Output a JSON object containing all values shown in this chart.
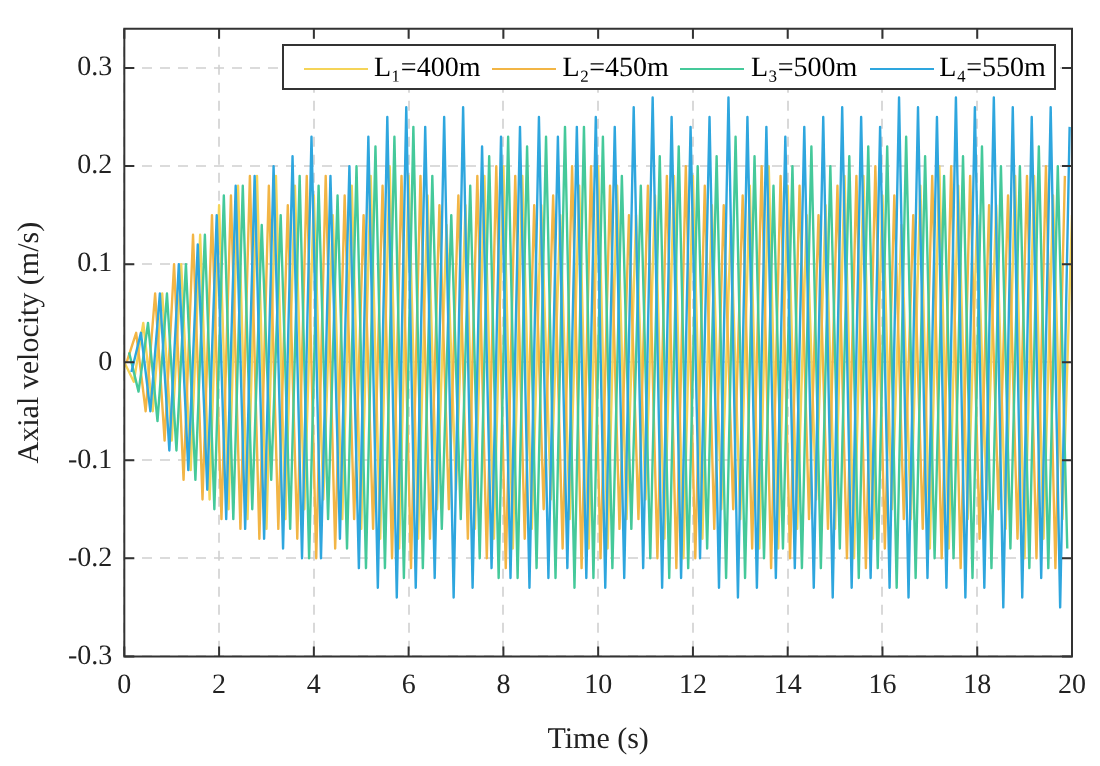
{
  "chart_data": {
    "type": "line",
    "xlabel": "Time (s)",
    "ylabel": "Axial velocity (m/s)",
    "x": [
      0,
      0.2,
      0.4,
      0.6,
      0.8,
      1,
      1.2,
      1.4,
      1.6,
      1.8,
      2,
      2.2,
      2.4,
      2.6,
      2.8,
      3,
      3.2,
      3.4,
      3.6,
      3.8,
      4,
      4.2,
      4.4,
      4.6,
      4.8,
      5,
      5.2,
      5.4,
      5.6,
      5.8,
      6,
      6.2,
      6.4,
      6.6,
      6.8,
      7,
      7.2,
      7.4,
      7.6,
      7.8,
      8,
      8.2,
      8.4,
      8.6,
      8.8,
      9,
      9.2,
      9.4,
      9.6,
      9.8,
      10,
      10.2,
      10.4,
      10.6,
      10.8,
      11,
      11.2,
      11.4,
      11.6,
      11.8,
      12,
      12.2,
      12.4,
      12.6,
      12.8,
      13,
      13.2,
      13.4,
      13.6,
      13.8,
      14,
      14.2,
      14.4,
      14.6,
      14.8,
      15,
      15.2,
      15.4,
      15.6,
      15.8,
      16,
      16.2,
      16.4,
      16.6,
      16.8,
      17,
      17.2,
      17.4,
      17.6,
      17.8,
      18,
      18.2,
      18.4,
      18.6,
      18.8,
      19,
      19.2,
      19.4,
      19.6,
      19.8,
      20
    ],
    "series": [
      {
        "name": "L₁=400m",
        "color": "#f5d458",
        "values": [
          0,
          -0.02,
          0.04,
          -0.05,
          0.07,
          -0.08,
          0.1,
          -0.11,
          0.13,
          -0.14,
          0.16,
          -0.15,
          0.18,
          -0.16,
          0.19,
          -0.17,
          0.19,
          -0.16,
          0.18,
          -0.15,
          0.17,
          -0.14,
          0.15,
          -0.16,
          0.18,
          -0.17,
          0.19,
          -0.18,
          0.2,
          -0.19,
          0.19,
          -0.18,
          0.17,
          -0.15,
          0.14,
          -0.13,
          0.16,
          -0.17,
          0.19,
          -0.18,
          0.2,
          -0.19,
          0.19,
          -0.17,
          0.16,
          -0.14,
          0.15,
          -0.16,
          0.18,
          -0.19,
          0.2,
          -0.19,
          0.18,
          -0.16,
          0.15,
          -0.14,
          0.17,
          -0.18,
          0.19,
          -0.2,
          0.19,
          -0.18,
          0.16,
          -0.15,
          0.14,
          -0.16,
          0.18,
          -0.19,
          0.2,
          -0.19,
          0.18,
          -0.17,
          0.15,
          -0.14,
          0.16,
          -0.17,
          0.19,
          -0.2,
          0.19,
          -0.18,
          0.17,
          -0.15,
          0.14,
          -0.16,
          0.18,
          -0.19,
          0.2,
          -0.19,
          0.18,
          -0.16,
          0.15,
          -0.14,
          0.16,
          -0.17,
          0.19,
          -0.2,
          0.19,
          -0.18,
          0.17,
          -0.16,
          0.15
        ]
      },
      {
        "name": "L₂=450m",
        "color": "#f2b545",
        "x": [
          0.05,
          0.25,
          0.45,
          0.65,
          0.85,
          1.05,
          1.25,
          1.45,
          1.65,
          1.85,
          2.05,
          2.25,
          2.45,
          2.65,
          2.85,
          3.05,
          3.25,
          3.45,
          3.65,
          3.85,
          4.05,
          4.25,
          4.45,
          4.65,
          4.85,
          5.05,
          5.25,
          5.45,
          5.65,
          5.85,
          6.05,
          6.25,
          6.45,
          6.65,
          6.85,
          7.05,
          7.25,
          7.45,
          7.65,
          7.85,
          8.05,
          8.25,
          8.45,
          8.65,
          8.85,
          9.05,
          9.25,
          9.45,
          9.65,
          9.85,
          10.05,
          10.25,
          10.45,
          10.65,
          10.85,
          11.05,
          11.25,
          11.45,
          11.65,
          11.85,
          12.05,
          12.25,
          12.45,
          12.65,
          12.85,
          13.05,
          13.25,
          13.45,
          13.65,
          13.85,
          14.05,
          14.25,
          14.45,
          14.65,
          14.85,
          15.05,
          15.25,
          15.45,
          15.65,
          15.85,
          16.05,
          16.25,
          16.45,
          16.65,
          16.85,
          17.05,
          17.25,
          17.45,
          17.65,
          17.85,
          18.05,
          18.25,
          18.45,
          18.65,
          18.85,
          19.05,
          19.25,
          19.45,
          19.65,
          19.85
        ],
        "values": [
          0,
          0.03,
          -0.05,
          0.07,
          -0.08,
          0.1,
          -0.12,
          0.13,
          -0.14,
          0.15,
          -0.16,
          0.17,
          -0.17,
          0.19,
          -0.18,
          0.18,
          -0.17,
          0.16,
          -0.18,
          0.19,
          -0.2,
          0.19,
          -0.19,
          0.17,
          -0.16,
          0.15,
          -0.17,
          0.18,
          -0.2,
          0.19,
          -0.21,
          0.19,
          -0.18,
          0.16,
          -0.15,
          0.17,
          -0.18,
          0.19,
          -0.2,
          0.2,
          -0.21,
          0.19,
          -0.18,
          0.16,
          -0.15,
          0.17,
          -0.19,
          0.2,
          -0.21,
          0.2,
          -0.2,
          0.18,
          -0.17,
          0.15,
          -0.16,
          0.18,
          -0.2,
          0.19,
          -0.21,
          0.2,
          -0.2,
          0.18,
          -0.17,
          0.16,
          -0.15,
          0.17,
          -0.19,
          0.2,
          -0.21,
          0.19,
          -0.2,
          0.18,
          -0.16,
          0.15,
          -0.17,
          0.18,
          -0.2,
          0.19,
          -0.21,
          0.2,
          -0.19,
          0.17,
          -0.16,
          0.15,
          -0.17,
          0.19,
          -0.2,
          0.2,
          -0.21,
          0.19,
          -0.18,
          0.16,
          -0.15,
          0.17,
          -0.18,
          0.19,
          -0.2,
          0.2,
          -0.21,
          0.19
        ]
      },
      {
        "name": "L₃=500m",
        "color": "#45c99a",
        "x": [
          0.1,
          0.3,
          0.5,
          0.7,
          0.9,
          1.1,
          1.3,
          1.5,
          1.7,
          1.9,
          2.1,
          2.3,
          2.5,
          2.7,
          2.9,
          3.1,
          3.3,
          3.5,
          3.7,
          3.9,
          4.1,
          4.3,
          4.5,
          4.7,
          4.9,
          5.1,
          5.3,
          5.5,
          5.7,
          5.9,
          6.1,
          6.3,
          6.5,
          6.7,
          6.9,
          7.1,
          7.3,
          7.5,
          7.7,
          7.9,
          8.1,
          8.3,
          8.5,
          8.7,
          8.9,
          9.1,
          9.3,
          9.5,
          9.7,
          9.9,
          10.1,
          10.3,
          10.5,
          10.7,
          10.9,
          11.1,
          11.3,
          11.5,
          11.7,
          11.9,
          12.1,
          12.3,
          12.5,
          12.7,
          12.9,
          13.1,
          13.3,
          13.5,
          13.7,
          13.9,
          14.1,
          14.3,
          14.5,
          14.7,
          14.9,
          15.1,
          15.3,
          15.5,
          15.7,
          15.9,
          16.1,
          16.3,
          16.5,
          16.7,
          16.9,
          17.1,
          17.3,
          17.5,
          17.7,
          17.9,
          18.1,
          18.3,
          18.5,
          18.7,
          18.9,
          19.1,
          19.3,
          19.5,
          19.7,
          19.9
        ],
        "values": [
          0.01,
          -0.03,
          0.04,
          -0.06,
          0.07,
          -0.09,
          0.1,
          -0.12,
          0.13,
          -0.15,
          0.17,
          -0.16,
          0.18,
          -0.15,
          0.14,
          -0.12,
          0.15,
          -0.17,
          0.19,
          -0.2,
          0.18,
          -0.16,
          0.17,
          -0.19,
          0.2,
          -0.21,
          0.22,
          -0.21,
          0.23,
          -0.22,
          0.24,
          -0.21,
          0.19,
          -0.17,
          0.15,
          -0.16,
          0.18,
          -0.2,
          0.21,
          -0.22,
          0.23,
          -0.22,
          0.22,
          -0.21,
          0.23,
          -0.22,
          0.24,
          -0.23,
          0.24,
          -0.22,
          0.23,
          -0.21,
          0.19,
          -0.17,
          0.18,
          -0.2,
          0.21,
          -0.22,
          0.22,
          -0.21,
          0.2,
          -0.19,
          0.21,
          -0.22,
          0.23,
          -0.22,
          0.21,
          -0.2,
          0.18,
          -0.19,
          0.2,
          -0.21,
          0.22,
          -0.21,
          0.2,
          -0.19,
          0.21,
          -0.22,
          0.22,
          -0.21,
          0.22,
          -0.23,
          0.23,
          -0.22,
          0.21,
          -0.2,
          0.19,
          -0.2,
          0.21,
          -0.22,
          0.22,
          -0.21,
          0.2,
          -0.19,
          0.2,
          -0.21,
          0.22,
          -0.21,
          0.2,
          -0.19
        ]
      },
      {
        "name": "L₄=550m",
        "color": "#2ea6de",
        "x": [
          0.15,
          0.35,
          0.55,
          0.75,
          0.95,
          1.15,
          1.35,
          1.55,
          1.75,
          1.95,
          2.15,
          2.35,
          2.55,
          2.75,
          2.95,
          3.15,
          3.35,
          3.55,
          3.75,
          3.95,
          4.15,
          4.35,
          4.55,
          4.75,
          4.95,
          5.15,
          5.35,
          5.55,
          5.75,
          5.95,
          6.15,
          6.35,
          6.55,
          6.75,
          6.95,
          7.15,
          7.35,
          7.55,
          7.75,
          7.95,
          8.15,
          8.35,
          8.55,
          8.75,
          8.95,
          9.15,
          9.35,
          9.55,
          9.75,
          9.95,
          10.15,
          10.35,
          10.55,
          10.75,
          10.95,
          11.15,
          11.35,
          11.55,
          11.75,
          11.95,
          12.15,
          12.35,
          12.55,
          12.75,
          12.95,
          13.15,
          13.35,
          13.55,
          13.75,
          13.95,
          14.15,
          14.35,
          14.55,
          14.75,
          14.95,
          15.15,
          15.35,
          15.55,
          15.75,
          15.95,
          16.15,
          16.35,
          16.55,
          16.75,
          16.95,
          17.15,
          17.35,
          17.55,
          17.75,
          17.95,
          18.15,
          18.35,
          18.55,
          18.75,
          18.95,
          19.15,
          19.35,
          19.55,
          19.75,
          19.95
        ],
        "values": [
          -0.01,
          0.03,
          -0.05,
          0.07,
          -0.09,
          0.1,
          -0.11,
          0.12,
          -0.13,
          0.15,
          -0.16,
          0.18,
          -0.17,
          0.19,
          -0.18,
          0.2,
          -0.19,
          0.21,
          -0.2,
          0.23,
          -0.2,
          0.19,
          -0.18,
          0.2,
          -0.21,
          0.23,
          -0.23,
          0.25,
          -0.24,
          0.26,
          -0.23,
          0.24,
          -0.22,
          0.25,
          -0.24,
          0.26,
          -0.23,
          0.22,
          -0.21,
          0.23,
          -0.22,
          0.24,
          -0.23,
          0.25,
          -0.22,
          0.23,
          -0.21,
          0.24,
          -0.22,
          0.25,
          -0.23,
          0.24,
          -0.22,
          0.26,
          -0.21,
          0.27,
          -0.23,
          0.25,
          -0.22,
          0.24,
          -0.2,
          0.25,
          -0.23,
          0.27,
          -0.24,
          0.25,
          -0.23,
          0.24,
          -0.22,
          0.23,
          -0.21,
          0.24,
          -0.23,
          0.25,
          -0.24,
          0.26,
          -0.23,
          0.25,
          -0.22,
          0.24,
          -0.23,
          0.27,
          -0.24,
          0.26,
          -0.22,
          0.25,
          -0.23,
          0.27,
          -0.24,
          0.26,
          -0.23,
          0.27,
          -0.25,
          0.26,
          -0.24,
          0.25,
          -0.22,
          0.26,
          -0.25,
          0.24
        ]
      }
    ],
    "xlim": [
      0,
      20
    ],
    "xticks": [
      0,
      2,
      4,
      6,
      8,
      10,
      12,
      14,
      16,
      18,
      20
    ],
    "ylim": [
      -0.3,
      0.34
    ],
    "yticks": [
      -0.3,
      -0.2,
      -0.1,
      0,
      0.1,
      0.2,
      0.3
    ],
    "grid": true,
    "legend": "top right"
  }
}
